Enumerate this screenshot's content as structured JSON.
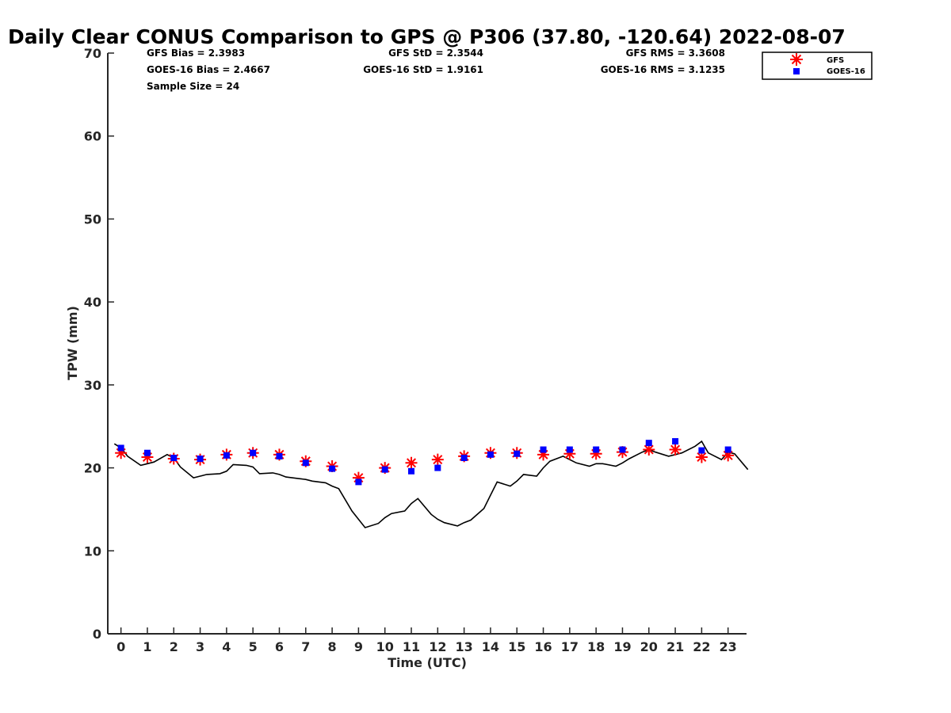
{
  "chart_data": {
    "type": "scatter",
    "title": "Daily Clear CONUS Comparison to GPS @ P306 (37.80, -120.64) 2022-08-07",
    "xlabel": "Time (UTC)",
    "ylabel": "TPW (mm)",
    "xlim": [
      -0.5,
      23.7
    ],
    "ylim": [
      0,
      70
    ],
    "x_ticks": [
      0,
      1,
      2,
      3,
      4,
      5,
      6,
      7,
      8,
      9,
      10,
      11,
      12,
      13,
      14,
      15,
      16,
      17,
      18,
      19,
      20,
      21,
      22,
      23
    ],
    "y_ticks": [
      0,
      10,
      20,
      30,
      40,
      50,
      60,
      70
    ],
    "grid": false,
    "legend_position": "top-right, outside plot",
    "stats": [
      {
        "text": "GFS Bias = 2.3983"
      },
      {
        "text": "GOES-16 Bias = 2.4667"
      },
      {
        "text": "Sample Size = 24"
      },
      {
        "text": "GFS StD = 2.3544"
      },
      {
        "text": "GOES-16 StD = 1.9161"
      },
      {
        "text": "GFS RMS = 3.3608"
      },
      {
        "text": "GOES-16 RMS = 3.1235"
      }
    ],
    "series": [
      {
        "name": "GPS",
        "kind": "line",
        "color": "#000000",
        "x": [
          -0.25,
          0,
          0.25,
          0.75,
          1,
          1.25,
          1.75,
          2,
          2.25,
          2.75,
          3,
          3.25,
          3.75,
          4,
          4.25,
          4.75,
          5,
          5.25,
          5.75,
          6,
          6.25,
          6.75,
          7,
          7.25,
          7.75,
          8,
          8.25,
          8.75,
          9,
          9.25,
          9.75,
          10,
          10.25,
          10.75,
          11,
          11.25,
          11.75,
          12,
          12.25,
          12.75,
          13,
          13.25,
          13.75,
          14,
          14.25,
          14.75,
          15,
          15.25,
          15.75,
          16,
          16.25,
          16.75,
          17,
          17.25,
          17.75,
          18,
          18.25,
          18.75,
          19,
          19.25,
          19.75,
          20,
          20.25,
          20.75,
          21,
          21.25,
          21.75,
          22,
          22.25,
          22.75,
          23,
          23.25,
          23.75
        ],
        "y": [
          22.9,
          22.4,
          21.4,
          20.3,
          20.5,
          20.7,
          21.6,
          21.2,
          20.1,
          18.8,
          19.0,
          19.2,
          19.3,
          19.6,
          20.4,
          20.3,
          20.1,
          19.3,
          19.4,
          19.2,
          18.9,
          18.7,
          18.6,
          18.4,
          18.2,
          17.8,
          17.5,
          14.8,
          13.8,
          12.8,
          13.3,
          14.0,
          14.5,
          14.8,
          15.7,
          16.3,
          14.4,
          13.8,
          13.4,
          13.0,
          13.4,
          13.7,
          15.1,
          16.7,
          18.3,
          17.8,
          18.4,
          19.2,
          19.0,
          20.0,
          20.8,
          21.4,
          21.0,
          20.6,
          20.2,
          20.5,
          20.5,
          20.2,
          20.6,
          21.1,
          21.9,
          22.2,
          21.9,
          21.4,
          21.6,
          21.8,
          22.6,
          23.2,
          21.8,
          21.0,
          21.9,
          21.7,
          19.8
        ]
      },
      {
        "name": "GFS",
        "kind": "marker",
        "marker": "asterisk",
        "color": "#ff0000",
        "x": [
          0,
          1,
          2,
          3,
          4,
          5,
          6,
          7,
          8,
          9,
          10,
          11,
          12,
          13,
          14,
          15,
          16,
          17,
          18,
          19,
          20,
          21,
          22,
          23
        ],
        "y": [
          21.8,
          21.3,
          21.1,
          21.0,
          21.6,
          21.8,
          21.6,
          20.8,
          20.2,
          18.8,
          20.0,
          20.6,
          21.0,
          21.4,
          21.8,
          21.8,
          21.6,
          21.7,
          21.7,
          21.9,
          22.2,
          22.2,
          21.3,
          21.5
        ]
      },
      {
        "name": "GOES-16",
        "kind": "marker",
        "marker": "square",
        "color": "#0000ff",
        "x": [
          0,
          1,
          2,
          3,
          4,
          5,
          6,
          7,
          8,
          9,
          10,
          11,
          12,
          13,
          14,
          15,
          16,
          17,
          18,
          19,
          20,
          21,
          22,
          23
        ],
        "y": [
          22.4,
          21.8,
          21.2,
          21.1,
          21.5,
          21.8,
          21.4,
          20.6,
          19.9,
          18.3,
          19.8,
          19.6,
          20.0,
          21.2,
          21.6,
          21.7,
          22.2,
          22.2,
          22.2,
          22.2,
          23.0,
          23.2,
          22.1,
          22.2
        ]
      }
    ]
  }
}
